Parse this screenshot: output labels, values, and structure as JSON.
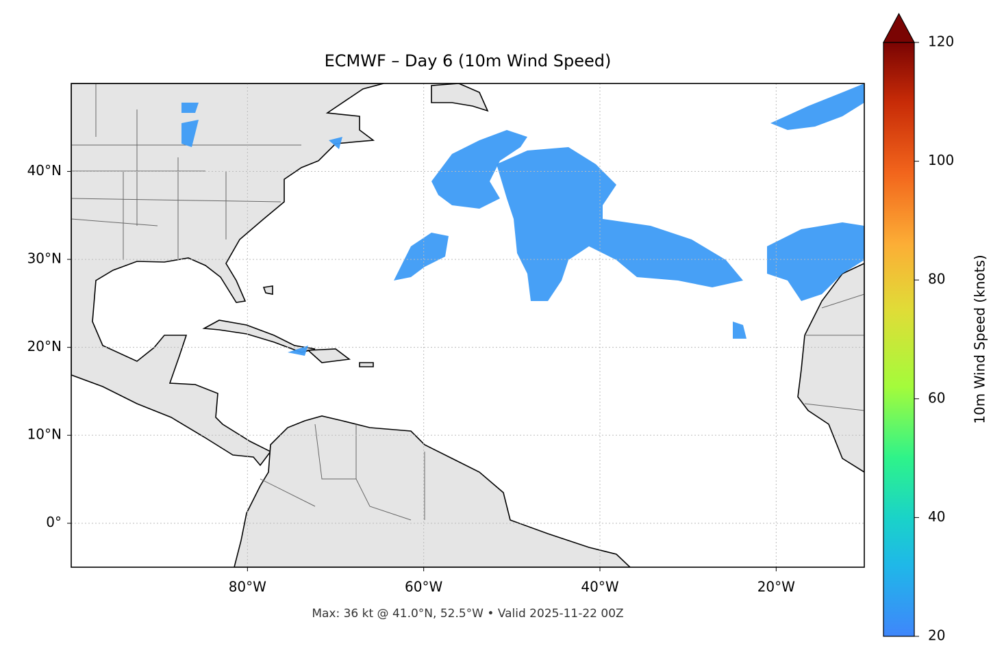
{
  "chart_data": {
    "type": "map",
    "title": "ECMWF – Day 6 (10m Wind Speed)",
    "subtitle": "Max: 36 kt @ 41.0°N, 52.5°W • Valid 2025-11-22 00Z",
    "xlim": [
      -100,
      -10
    ],
    "ylim": [
      -5,
      50
    ],
    "xticks": [
      {
        "value": -80,
        "label": "80°W"
      },
      {
        "value": -60,
        "label": "60°W"
      },
      {
        "value": -40,
        "label": "40°W"
      },
      {
        "value": -20,
        "label": "20°W"
      }
    ],
    "yticks": [
      {
        "value": 0,
        "label": "0°"
      },
      {
        "value": 10,
        "label": "10°N"
      },
      {
        "value": 20,
        "label": "20°N"
      },
      {
        "value": 30,
        "label": "30°N"
      },
      {
        "value": 40,
        "label": "40°N"
      }
    ],
    "grid": true,
    "colorbar": {
      "label": "10m Wind Speed (knots)",
      "lim": [
        20,
        120
      ],
      "ticks": [
        20,
        40,
        60,
        80,
        100,
        120
      ]
    }
  }
}
